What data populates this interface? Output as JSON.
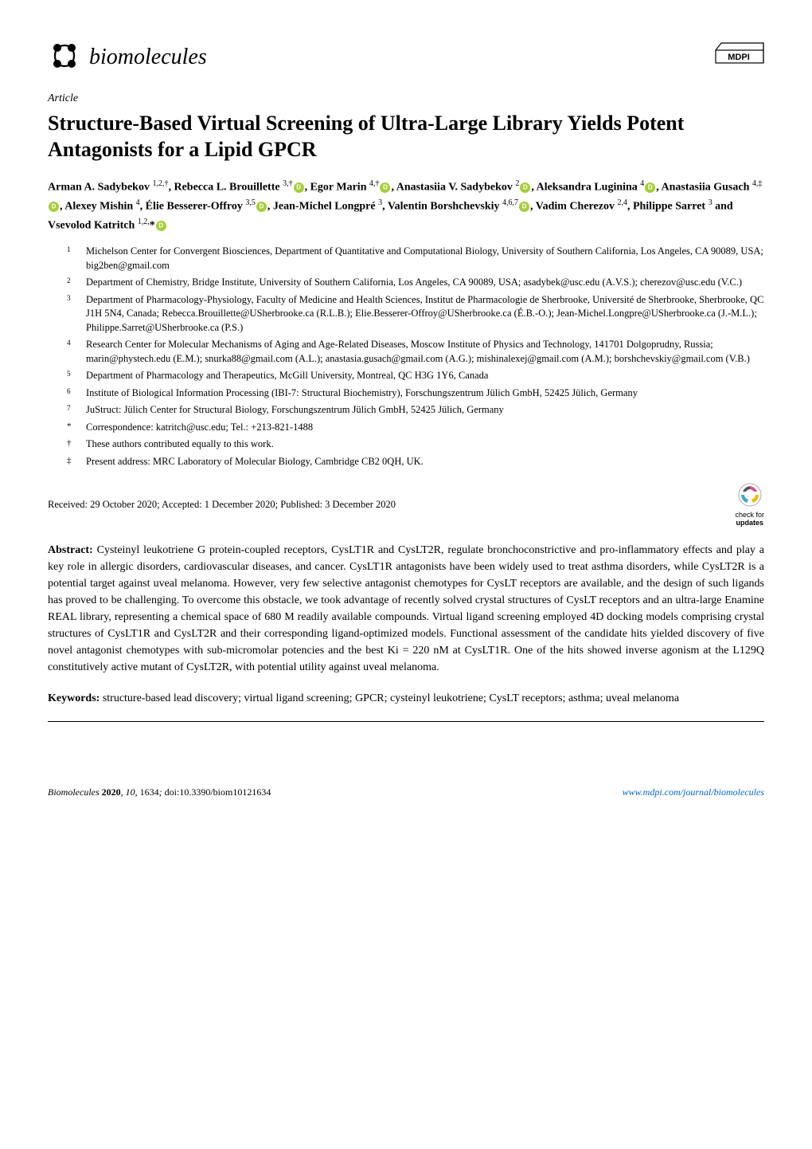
{
  "journal": {
    "name": "biomolecules",
    "publisher": "MDPI",
    "logo_shape_color": "#000000"
  },
  "article_type": "Article",
  "title": "Structure-Based Virtual Screening of Ultra-Large Library Yields Potent Antagonists for a Lipid GPCR",
  "authors_html": "Arman A. Sadybekov <sup>1,2,†</sup>, Rebecca L. Brouillette <sup>3,†</sup><span class='orcid'></span>, Egor Marin <sup>4,†</sup><span class='orcid'></span>, Anastasiia V. Sadybekov <sup>2</sup><span class='orcid'></span>, Aleksandra Luginina <sup>4</sup><span class='orcid'></span>, Anastasiia Gusach <sup>4,‡</sup><span class='orcid'></span>, Alexey Mishin <sup>4</sup>, Élie Besserer-Offroy <sup>3,5</sup><span class='orcid'></span>, Jean-Michel Longpré <sup>3</sup>, Valentin Borshchevskiy <sup>4,6,7</sup><span class='orcid'></span>, Vadim Cherezov <sup>2,4</sup>, Philippe Sarret <sup>3</sup> and Vsevolod Katritch <sup>1,2,</sup>*<span class='orcid'></span>",
  "affiliations": [
    {
      "marker": "1",
      "text": "Michelson Center for Convergent Biosciences, Department of Quantitative and Computational Biology, University of Southern California, Los Angeles, CA 90089, USA; big2ben@gmail.com"
    },
    {
      "marker": "2",
      "text": "Department of Chemistry, Bridge Institute, University of Southern California, Los Angeles, CA 90089, USA; asadybek@usc.edu (A.V.S.); cherezov@usc.edu (V.C.)"
    },
    {
      "marker": "3",
      "text": "Department of Pharmacology-Physiology, Faculty of Medicine and Health Sciences, Institut de Pharmacologie de Sherbrooke, Université de Sherbrooke, Sherbrooke, QC J1H 5N4, Canada; Rebecca.Brouillette@USherbrooke.ca (R.L.B.); Elie.Besserer-Offroy@USherbrooke.ca (É.B.-O.); Jean-Michel.Longpre@USherbrooke.ca (J.-M.L.); Philippe.Sarret@USherbrooke.ca (P.S.)"
    },
    {
      "marker": "4",
      "text": "Research Center for Molecular Mechanisms of Aging and Age-Related Diseases, Moscow Institute of Physics and Technology, 141701 Dolgoprudny, Russia; marin@phystech.edu (E.M.); snurka88@gmail.com (A.L.); anastasia.gusach@gmail.com (A.G.); mishinalexej@gmail.com (A.M.); borshchevskiy@gmail.com (V.B.)"
    },
    {
      "marker": "5",
      "text": "Department of Pharmacology and Therapeutics, McGill University, Montreal, QC H3G 1Y6, Canada"
    },
    {
      "marker": "6",
      "text": "Institute of Biological Information Processing (IBI-7: Structural Biochemistry), Forschungszentrum Jülich GmbH, 52425 Jülich, Germany"
    },
    {
      "marker": "7",
      "text": "JuStruct: Jülich Center for Structural Biology, Forschungszentrum Jülich GmbH, 52425 Jülich, Germany"
    },
    {
      "marker": "*",
      "text": "Correspondence: katritch@usc.edu; Tel.: +213-821-1488"
    },
    {
      "marker": "†",
      "text": "These authors contributed equally to this work."
    },
    {
      "marker": "‡",
      "text": "Present address: MRC Laboratory of Molecular Biology, Cambridge CB2 0QH, UK."
    }
  ],
  "dates": "Received: 29 October 2020; Accepted: 1 December 2020; Published: 3 December 2020",
  "check_updates_label": "check for",
  "check_updates_bold": "updates",
  "abstract_label": "Abstract:",
  "abstract": "Cysteinyl leukotriene G protein-coupled receptors, CysLT1R and CysLT2R, regulate bronchoconstrictive and pro-inflammatory effects and play a key role in allergic disorders, cardiovascular diseases, and cancer. CysLT1R antagonists have been widely used to treat asthma disorders, while CysLT2R is a potential target against uveal melanoma. However, very few selective antagonist chemotypes for CysLT receptors are available, and the design of such ligands has proved to be challenging. To overcome this obstacle, we took advantage of recently solved crystal structures of CysLT receptors and an ultra-large Enamine REAL library, representing a chemical space of 680 M readily available compounds. Virtual ligand screening employed 4D docking models comprising crystal structures of CysLT1R and CysLT2R and their corresponding ligand-optimized models. Functional assessment of the candidate hits yielded discovery of five novel antagonist chemotypes with sub-micromolar potencies and the best Ki = 220 nM at CysLT1R. One of the hits showed inverse agonism at the L129Q constitutively active mutant of CysLT2R, with potential utility against uveal melanoma.",
  "keywords_label": "Keywords:",
  "keywords": "structure-based lead discovery; virtual ligand screening; GPCR; cysteinyl leukotriene; CysLT receptors; asthma; uveal melanoma",
  "footer": {
    "left_journal": "Biomolecules",
    "left_year": "2020",
    "left_vol": "10",
    "left_article": "1634",
    "left_doi": "doi:10.3390/biom10121634",
    "right_url": "www.mdpi.com/journal/biomolecules"
  },
  "colors": {
    "orcid_green": "#A6CE39",
    "link_blue": "#0066cc",
    "updates_pink": "#d94a8c",
    "updates_yellow": "#f2b705",
    "updates_cyan": "#3aa6c9"
  }
}
